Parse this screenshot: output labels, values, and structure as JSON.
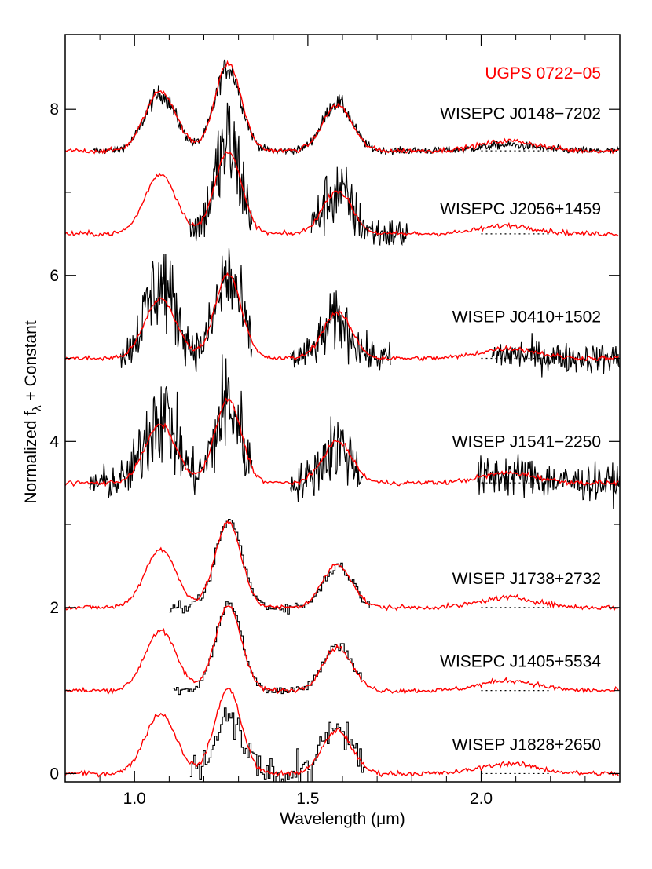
{
  "chart_data": {
    "type": "line",
    "xlabel": "Wavelength (μm)",
    "ylabel_main": "Normalized f",
    "ylabel_sub": "λ",
    "ylabel_tail": " + Constant",
    "xlim": [
      0.8,
      2.4
    ],
    "ylim": [
      -0.1,
      8.9
    ],
    "x_ticks": [
      {
        "value": 1.0,
        "label": "1.0"
      },
      {
        "value": 1.5,
        "label": "1.5"
      },
      {
        "value": 2.0,
        "label": "2.0"
      }
    ],
    "y_ticks": [
      {
        "value": 0,
        "label": "0"
      },
      {
        "value": 2,
        "label": "2"
      },
      {
        "value": 4,
        "label": "4"
      },
      {
        "value": 6,
        "label": "6"
      },
      {
        "value": 8,
        "label": "8"
      }
    ],
    "grid": false,
    "reference_label": "UGPS 0722−05",
    "colors": {
      "reference": "#ff0000",
      "object": "#000000",
      "axes": "#000000"
    },
    "series": [
      {
        "name": "WISEPC J0148−7202",
        "offset": 7.5,
        "style": "noisy",
        "noise": 0.06,
        "segments": [
          [
            0.88,
            2.4
          ]
        ],
        "peaks": [
          0.68,
          1.0,
          0.58,
          0.07
        ],
        "ref_peaks": [
          0.72,
          1.05,
          0.55,
          0.12
        ],
        "label_y": 7.95
      },
      {
        "name": "WISEPC J2056+1459",
        "offset": 6.5,
        "style": "noisy",
        "noise": 0.28,
        "segments": [
          [
            1.16,
            1.34
          ],
          [
            1.51,
            1.79
          ]
        ],
        "peaks": [
          0.7,
          1.05,
          0.5,
          0.05
        ],
        "ref_peaks": [
          0.72,
          1.0,
          0.52,
          0.1
        ],
        "label_y": 6.8
      },
      {
        "name": "WISEP J0410+1502",
        "offset": 5.0,
        "style": "noisy",
        "noise": 0.25,
        "segments": [
          [
            0.96,
            1.34
          ],
          [
            1.45,
            1.74
          ],
          [
            2.03,
            2.4
          ]
        ],
        "peaks": [
          0.9,
          0.95,
          0.45,
          0.05
        ],
        "ref_peaks": [
          0.72,
          1.02,
          0.55,
          0.12
        ],
        "label_y": 5.5
      },
      {
        "name": "WISEP J1541−2250",
        "offset": 3.5,
        "style": "noisy",
        "noise": 0.3,
        "segments": [
          [
            0.87,
            1.34
          ],
          [
            1.45,
            1.66
          ],
          [
            1.99,
            2.4
          ]
        ],
        "peaks": [
          0.85,
          0.95,
          0.45,
          0.1
        ],
        "ref_peaks": [
          0.7,
          1.0,
          0.5,
          0.12
        ],
        "label_y": 4.0
      },
      {
        "name": "WISEP J1738+2732",
        "offset": 2.0,
        "style": "step",
        "segments": [
          [
            1.1,
            1.68
          ]
        ],
        "peaks": [
          0.0,
          1.05,
          0.5,
          0.0
        ],
        "ref_peaks": [
          0.7,
          1.02,
          0.52,
          0.12
        ],
        "label_y": 2.35
      },
      {
        "name": "WISEPC J1405+5534",
        "offset": 1.0,
        "style": "step",
        "segments": [
          [
            1.11,
            1.66
          ]
        ],
        "peaks": [
          0.0,
          1.05,
          0.55,
          0.0
        ],
        "ref_peaks": [
          0.72,
          1.02,
          0.52,
          0.12
        ],
        "label_y": 1.35
      },
      {
        "name": "WISEP J1828+2650",
        "offset": 0.0,
        "style": "step",
        "segments": [
          [
            1.16,
            1.67
          ]
        ],
        "peaks": [
          0.0,
          0.65,
          0.55,
          0.0
        ],
        "ref_peaks": [
          0.72,
          1.02,
          0.52,
          0.12
        ],
        "label_y": 0.35
      }
    ]
  }
}
